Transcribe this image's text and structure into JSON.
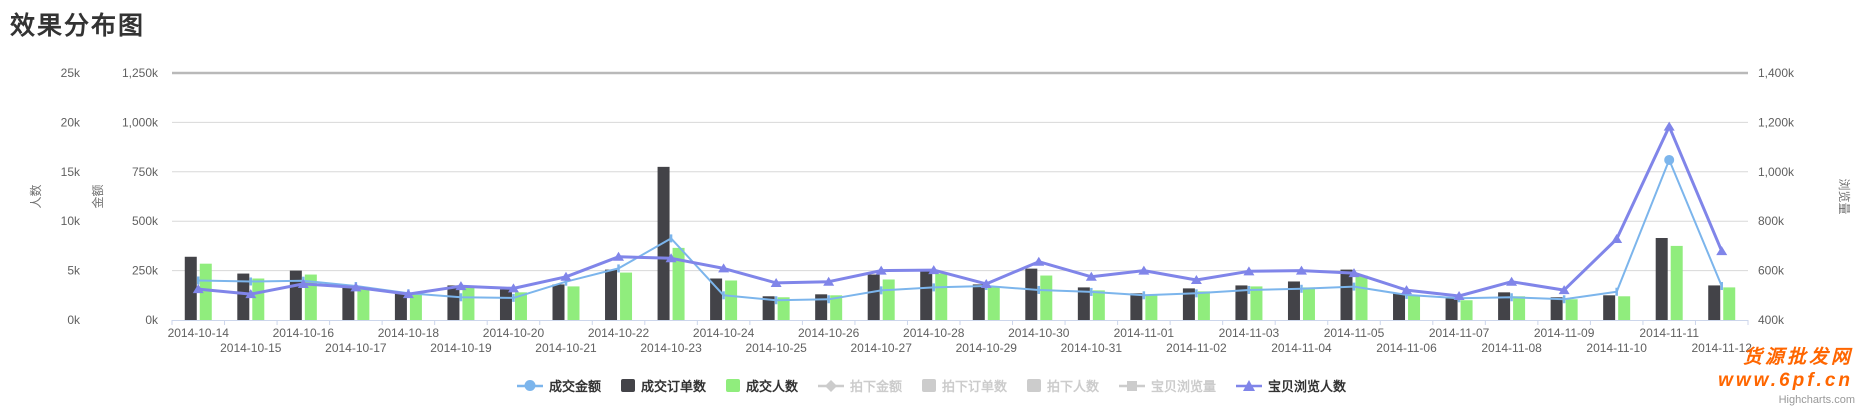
{
  "page": {
    "title": "效果分布图"
  },
  "watermark": {
    "line1": "货源批发网",
    "line2": "www.6pf.cn",
    "color": "#ff6600"
  },
  "credits": "Highcharts.com",
  "chart_data": {
    "type": "combo-column-line",
    "categories": [
      "2014-10-14",
      "2014-10-15",
      "2014-10-16",
      "2014-10-17",
      "2014-10-18",
      "2014-10-19",
      "2014-10-20",
      "2014-10-21",
      "2014-10-22",
      "2014-10-23",
      "2014-10-24",
      "2014-10-25",
      "2014-10-26",
      "2014-10-27",
      "2014-10-28",
      "2014-10-29",
      "2014-10-30",
      "2014-10-31",
      "2014-11-01",
      "2014-11-02",
      "2014-11-03",
      "2014-11-04",
      "2014-11-05",
      "2014-11-06",
      "2014-11-07",
      "2014-11-08",
      "2014-11-09",
      "2014-11-10",
      "2014-11-11",
      "2014-11-12"
    ],
    "axes": {
      "count": {
        "title": "人数",
        "side": "left",
        "min": 0,
        "max": 25,
        "tick_labels": [
          "0k",
          "5k",
          "10k",
          "15k",
          "20k",
          "25k"
        ]
      },
      "amount": {
        "title": "金额",
        "side": "left",
        "min": 0,
        "max": 1250,
        "tick_labels": [
          "0k",
          "250k",
          "500k",
          "750k",
          "1,000k",
          "1,250k"
        ]
      },
      "views": {
        "title": "浏览量",
        "side": "right",
        "min": 400,
        "max": 1400,
        "tick_labels": [
          "400k",
          "600k",
          "800k",
          "1,000k",
          "1,200k",
          "1,400k"
        ]
      }
    },
    "series": [
      {
        "name": "成交金额",
        "type": "line",
        "marker": "tick",
        "axis": "amount",
        "color": "#7cb5ec",
        "visible": true,
        "values_k": [
          200,
          195,
          199,
          172,
          135,
          115,
          112,
          194,
          261,
          413,
          125,
          100,
          105,
          150,
          165,
          172,
          152,
          142,
          125,
          135,
          152,
          158,
          169,
          127,
          110,
          115,
          105,
          143,
          810,
          172
        ]
      },
      {
        "name": "成交订单数",
        "type": "bar",
        "axis": "count",
        "color": "#434348",
        "visible": true,
        "values_k": [
          6.4,
          4.7,
          5.0,
          3.3,
          2.7,
          3.5,
          3.1,
          3.6,
          5.1,
          15.5,
          4.2,
          2.4,
          2.6,
          4.6,
          5.1,
          3.6,
          5.2,
          3.3,
          2.7,
          3.2,
          3.5,
          3.9,
          5.1,
          2.7,
          2.2,
          2.8,
          2.3,
          2.5,
          8.3,
          3.5
        ]
      },
      {
        "name": "成交人数",
        "type": "bar",
        "axis": "count",
        "color": "#90ed7d",
        "visible": true,
        "values_k": [
          5.7,
          4.2,
          4.6,
          3.1,
          2.7,
          3.4,
          2.8,
          3.4,
          4.8,
          7.3,
          4.0,
          2.3,
          2.5,
          4.1,
          4.7,
          3.3,
          4.5,
          3.0,
          2.5,
          2.9,
          3.4,
          3.3,
          4.5,
          2.5,
          2.0,
          2.4,
          2.1,
          2.4,
          7.5,
          3.3
        ]
      },
      {
        "name": "拍下金额",
        "type": "line",
        "marker": "diamond",
        "axis": "amount",
        "color": "#cccccc",
        "visible": false,
        "values_k": []
      },
      {
        "name": "拍下订单数",
        "type": "bar",
        "axis": "count",
        "color": "#cccccc",
        "visible": false,
        "values_k": []
      },
      {
        "name": "拍下人数",
        "type": "bar",
        "axis": "count",
        "color": "#cccccc",
        "visible": false,
        "values_k": []
      },
      {
        "name": "宝贝浏览量",
        "type": "line",
        "marker": "square",
        "axis": "views",
        "color": "#cccccc",
        "visible": false,
        "values_k": []
      },
      {
        "name": "宝贝浏览人数",
        "type": "line",
        "marker": "triangle",
        "axis": "views",
        "color": "#8085e9",
        "visible": true,
        "values_k": [
          525,
          505,
          546,
          532,
          505,
          537,
          528,
          575,
          656,
          650,
          609,
          550,
          555,
          600,
          602,
          546,
          636,
          575,
          600,
          562,
          597,
          600,
          590,
          521,
          497,
          555,
          521,
          728,
          1183,
          679
        ]
      }
    ],
    "layout": {
      "grid": true,
      "legend_position": "bottom",
      "x_labels_staggered_rows": 2
    }
  }
}
